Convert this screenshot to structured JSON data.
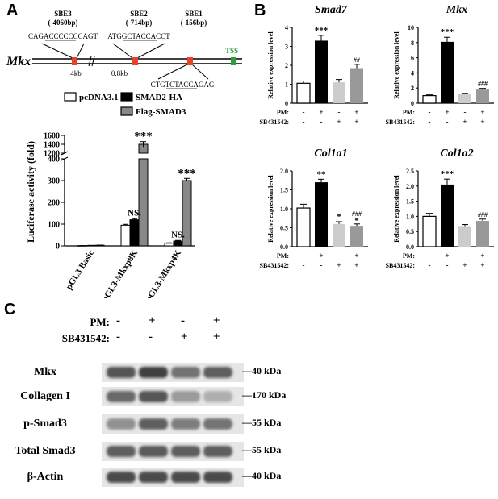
{
  "panels": {
    "A": "A",
    "B": "B",
    "C": "C"
  },
  "panelA": {
    "gene": "Mkx",
    "tss": "TSS",
    "sbe3_name": "SBE3",
    "sbe3_pos": "(-4060bp)",
    "sbe3_seq": "CAGACCCCCCCAGT",
    "sbe2_name": "SBE2",
    "sbe2_pos": "(-714bp)",
    "sbe2_seq": "ATGGCTACCACCT",
    "sbe1_name": "SBE1",
    "sbe1_pos": "(-156bp)",
    "sbe1_seq": "CTGTCTACCAGAG",
    "dist1": "4kb",
    "dist2": "0.8kb",
    "colors": {
      "sbe": "#e8432a",
      "tss": "#2e9e3a",
      "tss_text": "#2e9e3a"
    }
  },
  "chart_data": [
    {
      "type": "bar",
      "id": "luciferase",
      "ylabel": "Luciferase activity (fold)",
      "categories": [
        "pGL3 Basic",
        "pGL3-Mkxp8K",
        "pGL3-Mkxp4K"
      ],
      "series": [
        {
          "name": "pcDNA3.1",
          "color": "#ffffff",
          "values": [
            1,
            95,
            12
          ]
        },
        {
          "name": "SMAD2-HA",
          "color": "#000000",
          "values": [
            2,
            120,
            22
          ]
        },
        {
          "name": "Flag-SMAD3",
          "color": "#888888",
          "values": [
            3,
            1400,
            300
          ]
        }
      ],
      "errors": [
        [
          0.3,
          4,
          2
        ],
        [
          0.4,
          5,
          3
        ],
        [
          0.5,
          60,
          10
        ]
      ],
      "yticks": [
        "0",
        "100",
        "200",
        "300",
        "400",
        "1200",
        "1400",
        "1600"
      ],
      "annotations": [
        {
          "category": 1,
          "series": 2,
          "text": "***"
        },
        {
          "category": 2,
          "series": 2,
          "text": "***"
        },
        {
          "category": 1,
          "series": 1,
          "text": "NS."
        },
        {
          "category": 2,
          "series": 1,
          "text": "NS."
        }
      ],
      "axis_break": [
        400,
        1200
      ]
    },
    {
      "type": "bar",
      "id": "smad7",
      "title": "Smad7",
      "ylabel": "Relative expression level",
      "ylim": [
        0,
        4
      ],
      "yticks": [
        "0",
        "1",
        "2",
        "3",
        "4"
      ],
      "values": [
        1.05,
        3.3,
        1.1,
        1.85
      ],
      "errors": [
        0.12,
        0.28,
        0.15,
        0.2
      ],
      "colors": [
        "#ffffff",
        "#000000",
        "#cccccc",
        "#999999"
      ],
      "annotations": [
        "",
        "***",
        "",
        "##"
      ],
      "annotations2": [
        "",
        "",
        "",
        ""
      ],
      "pm": [
        "-",
        "+",
        "-",
        "+"
      ],
      "sb": [
        "-",
        "-",
        "+",
        "+"
      ]
    },
    {
      "type": "bar",
      "id": "mkx",
      "title": "Mkx",
      "ylabel": "Relative expression level",
      "ylim": [
        0,
        10
      ],
      "yticks": [
        "0",
        "2",
        "4",
        "6",
        "8",
        "10"
      ],
      "values": [
        1.0,
        8.1,
        1.2,
        1.8
      ],
      "errors": [
        0.1,
        0.6,
        0.1,
        0.15
      ],
      "colors": [
        "#ffffff",
        "#000000",
        "#cccccc",
        "#999999"
      ],
      "annotations": [
        "",
        "***",
        "",
        "###"
      ],
      "annotations2": [
        "",
        "",
        "",
        ""
      ],
      "pm": [
        "-",
        "+",
        "-",
        "+"
      ],
      "sb": [
        "-",
        "-",
        "+",
        "+"
      ]
    },
    {
      "type": "bar",
      "id": "col1a1",
      "title": "Col1a1",
      "ylabel": "Relative expression level",
      "ylim": [
        0,
        2.0
      ],
      "yticks": [
        "0.0",
        "0.5",
        "1.0",
        "1.5",
        "2.0"
      ],
      "values": [
        1.02,
        1.7,
        0.6,
        0.55
      ],
      "errors": [
        0.1,
        0.08,
        0.06,
        0.05
      ],
      "colors": [
        "#ffffff",
        "#000000",
        "#cccccc",
        "#999999"
      ],
      "annotations": [
        "",
        "**",
        "*",
        "###"
      ],
      "annotations2": [
        "",
        "",
        "",
        "*"
      ],
      "pm": [
        "-",
        "+",
        "-",
        "+"
      ],
      "sb": [
        "-",
        "-",
        "+",
        "+"
      ]
    },
    {
      "type": "bar",
      "id": "col1a2",
      "title": "Col1a2",
      "ylabel": "Relative expression level",
      "ylim": [
        0,
        2.5
      ],
      "yticks": [
        "0.0",
        "0.5",
        "1.0",
        "1.5",
        "2.0",
        "2.5"
      ],
      "values": [
        1.0,
        2.05,
        0.68,
        0.85
      ],
      "errors": [
        0.1,
        0.18,
        0.05,
        0.06
      ],
      "colors": [
        "#ffffff",
        "#000000",
        "#cccccc",
        "#999999"
      ],
      "annotations": [
        "",
        "***",
        "",
        "###"
      ],
      "annotations2": [
        "",
        "",
        "",
        ""
      ],
      "pm": [
        "-",
        "+",
        "-",
        "+"
      ],
      "sb": [
        "-",
        "-",
        "+",
        "+"
      ]
    }
  ],
  "treatment_labels": {
    "pm": "PM:",
    "sb": "SB431542:"
  },
  "panelC": {
    "pm_label": "PM:",
    "sb_label": "SB431542:",
    "pm": [
      "-",
      "+",
      "-",
      "+"
    ],
    "sb": [
      "-",
      "-",
      "+",
      "+"
    ],
    "blots": [
      {
        "label": "Mkx",
        "kda": "40 kDa",
        "intensity": [
          0.75,
          0.85,
          0.6,
          0.7
        ]
      },
      {
        "label": "Collagen I",
        "kda": "170 kDa",
        "intensity": [
          0.65,
          0.75,
          0.4,
          0.3
        ]
      },
      {
        "label": "p-Smad3",
        "kda": "55 kDa",
        "intensity": [
          0.45,
          0.7,
          0.55,
          0.6
        ]
      },
      {
        "label": "Total Smad3",
        "kda": "55 kDa",
        "intensity": [
          0.7,
          0.72,
          0.7,
          0.7
        ]
      },
      {
        "label": "β-Actin",
        "kda": "40 kDa",
        "intensity": [
          0.8,
          0.8,
          0.8,
          0.8
        ]
      }
    ]
  }
}
